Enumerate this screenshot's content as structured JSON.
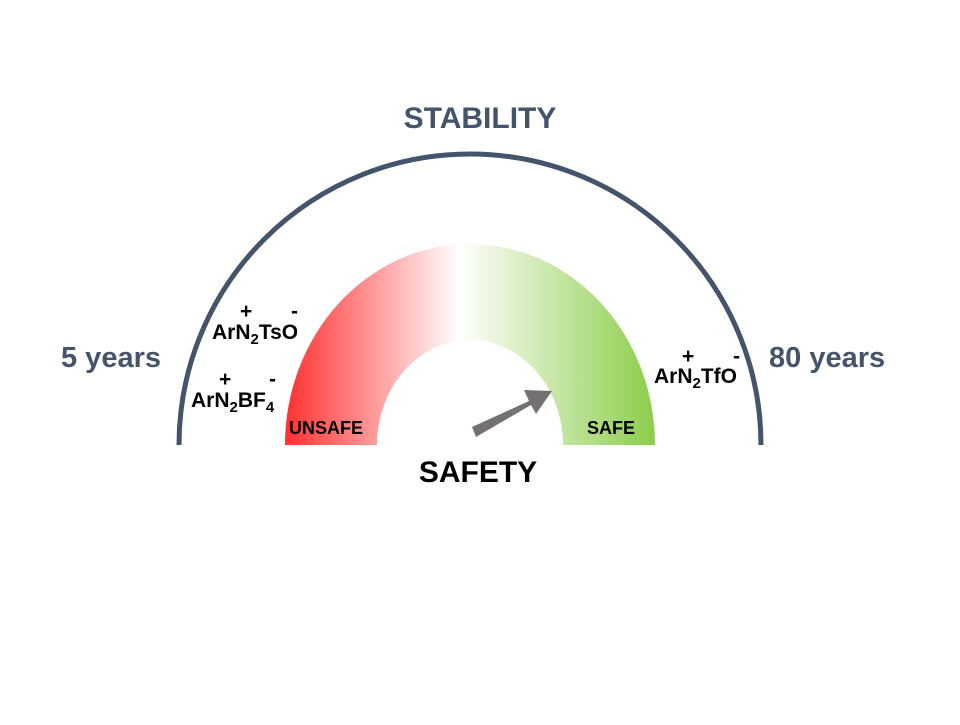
{
  "stability": {
    "title": "STABILITY",
    "min_label": "5 years",
    "max_label": "80 years"
  },
  "safety": {
    "title": "SAFETY",
    "unsafe_label": "UNSAFE",
    "safe_label": "SAFE",
    "needle_direction": "toward SAFE"
  },
  "compounds": [
    {
      "base": "ArN",
      "sub": "2",
      "rest": "TsO",
      "sub2": "",
      "cation_charge": "+",
      "anion_charge": "-"
    },
    {
      "base": "ArN",
      "sub": "2",
      "rest": "BF",
      "sub2": "4",
      "cation_charge": "+",
      "anion_charge": "-"
    },
    {
      "base": "ArN",
      "sub": "2",
      "rest": "TfO",
      "sub2": "",
      "cation_charge": "+",
      "anion_charge": "-"
    }
  ],
  "colors": {
    "stability_arc": "#44546a",
    "unsafe": "#ff3b3b",
    "safe": "#8ccd4a",
    "needle": "#7f7f7f",
    "years_text": "#44546a"
  }
}
